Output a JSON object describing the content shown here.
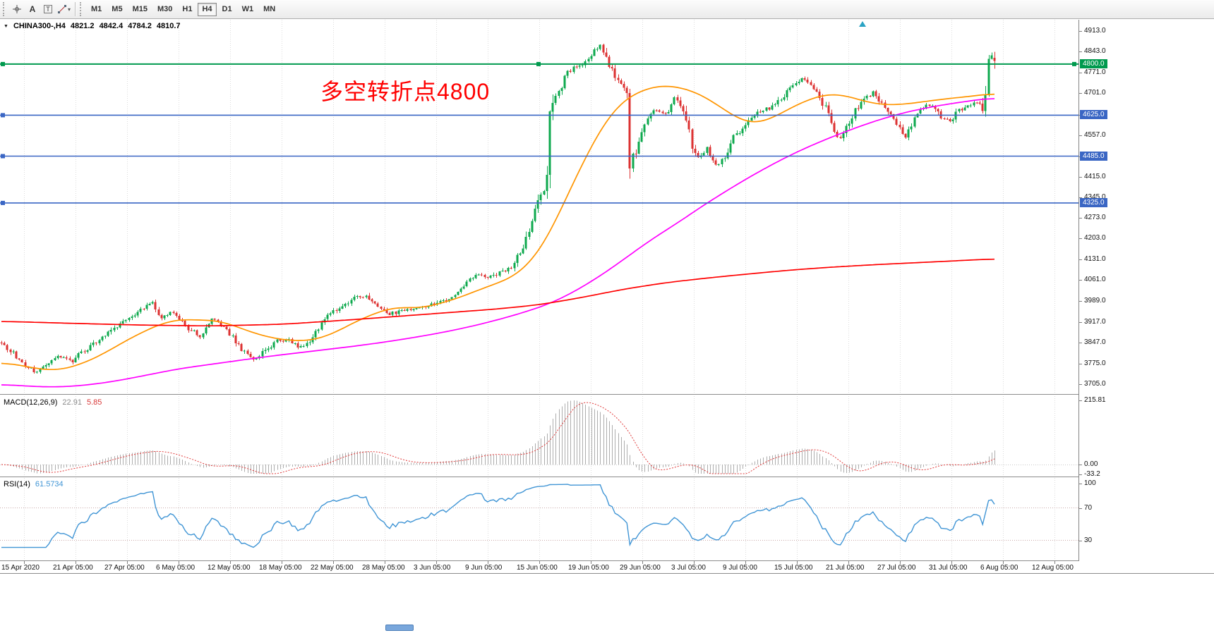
{
  "toolbar": {
    "tools": [
      {
        "name": "crosshair"
      },
      {
        "name": "text-label",
        "label": "A"
      },
      {
        "name": "text-box",
        "label": "T"
      },
      {
        "name": "shapes"
      }
    ],
    "timeframes": [
      "M1",
      "M5",
      "M15",
      "M30",
      "H1",
      "H4",
      "D1",
      "W1",
      "MN"
    ],
    "active_timeframe": "H4"
  },
  "chart": {
    "title": "CHINA300-,H4",
    "ohlc": {
      "open": "4821.2",
      "high": "4842.4",
      "low": "4784.2",
      "close": "4810.7"
    },
    "annotation": {
      "text": "多空转折点4800",
      "color": "#FF0000"
    },
    "price_ticks": [
      "4913.0",
      "4843.0",
      "4771.0",
      "4701.0",
      "4625.0",
      "4557.0",
      "4485.0",
      "4415.0",
      "4345.0",
      "4273.0",
      "4203.0",
      "4131.0",
      "4061.0",
      "3989.0",
      "3917.0",
      "3847.0",
      "3775.0",
      "3705.0"
    ],
    "time_ticks": [
      "15 Apr 2020",
      "21 Apr 05:00",
      "27 Apr 05:00",
      "6 May 05:00",
      "12 May 05:00",
      "18 May 05:00",
      "22 May 05:00",
      "28 May 05:00",
      "3 Jun 05:00",
      "9 Jun 05:00",
      "15 Jun 05:00",
      "19 Jun 05:00",
      "29 Jun 05:00",
      "3 Jul 05:00",
      "9 Jul 05:00",
      "15 Jul 05:00",
      "21 Jul 05:00",
      "27 Jul 05:00",
      "31 Jul 05:00",
      "6 Aug 05:00",
      "12 Aug 05:00"
    ],
    "levels": [
      {
        "price": 4800.0,
        "label": "4800.0",
        "color": "#009A4E"
      },
      {
        "price": 4625.0,
        "label": "4625.0",
        "color": "#3A66C4"
      },
      {
        "price": 4485.0,
        "label": "4485.0",
        "color": "#3A66C4"
      },
      {
        "price": 4325.0,
        "label": "4325.0",
        "color": "#3A66C4"
      }
    ]
  },
  "macd": {
    "label": "MACD(12,26,9)",
    "main_value": "22.91",
    "signal_value": "5.85",
    "ticks": [
      "215.81",
      "0.00",
      "-33.2"
    ]
  },
  "rsi": {
    "label": "RSI(14)",
    "value": "61.5734",
    "ticks": [
      "100",
      "70",
      "30"
    ],
    "levels": [
      70,
      30
    ]
  },
  "chart_data": {
    "type": "candlestick",
    "symbol": "CHINA300-",
    "timeframe": "H4",
    "bars": 336,
    "visible_price_range": [
      3674,
      4944
    ],
    "current_bar_ohlc": [
      4821.2,
      4842.4,
      4784.2,
      4810.7
    ],
    "horizontal_levels": [
      4800,
      4625,
      4485,
      4325
    ],
    "up_color": "#0EA94E",
    "down_color": "#DC3232",
    "close_anchors": [
      [
        0,
        3845
      ],
      [
        3,
        3818
      ],
      [
        6,
        3792
      ],
      [
        9,
        3762
      ],
      [
        12,
        3742
      ],
      [
        15,
        3772
      ],
      [
        18,
        3795
      ],
      [
        21,
        3802
      ],
      [
        24,
        3785
      ],
      [
        27,
        3812
      ],
      [
        31,
        3842
      ],
      [
        35,
        3868
      ],
      [
        39,
        3905
      ],
      [
        44,
        3938
      ],
      [
        48,
        3968
      ],
      [
        51,
        3982
      ],
      [
        54,
        3932
      ],
      [
        57,
        3952
      ],
      [
        60,
        3928
      ],
      [
        63,
        3895
      ],
      [
        67,
        3872
      ],
      [
        71,
        3928
      ],
      [
        74,
        3908
      ],
      [
        78,
        3865
      ],
      [
        82,
        3812
      ],
      [
        86,
        3788
      ],
      [
        89,
        3822
      ],
      [
        93,
        3852
      ],
      [
        97,
        3856
      ],
      [
        100,
        3832
      ],
      [
        103,
        3842
      ],
      [
        106,
        3885
      ],
      [
        109,
        3935
      ],
      [
        113,
        3958
      ],
      [
        117,
        3988
      ],
      [
        120,
        4008
      ],
      [
        123,
        4002
      ],
      [
        127,
        3968
      ],
      [
        130,
        3945
      ],
      [
        134,
        3952
      ],
      [
        138,
        3962
      ],
      [
        142,
        3968
      ],
      [
        146,
        3978
      ],
      [
        150,
        3992
      ],
      [
        154,
        4022
      ],
      [
        158,
        4062
      ],
      [
        161,
        4082
      ],
      [
        164,
        4068
      ],
      [
        167,
        4082
      ],
      [
        170,
        4092
      ],
      [
        173,
        4118
      ],
      [
        176,
        4175
      ],
      [
        179,
        4262
      ],
      [
        181,
        4330
      ],
      [
        183,
        4385
      ],
      [
        184,
        4408
      ],
      [
        185,
        4655
      ],
      [
        187,
        4682
      ],
      [
        188,
        4708
      ],
      [
        191,
        4775
      ],
      [
        194,
        4790
      ],
      [
        197,
        4802
      ],
      [
        200,
        4848
      ],
      [
        202,
        4862
      ],
      [
        205,
        4798
      ],
      [
        208,
        4742
      ],
      [
        210,
        4700
      ],
      [
        211,
        4690
      ],
      [
        212,
        4468
      ],
      [
        214,
        4505
      ],
      [
        217,
        4602
      ],
      [
        220,
        4642
      ],
      [
        224,
        4628
      ],
      [
        227,
        4682
      ],
      [
        230,
        4652
      ],
      [
        233,
        4522
      ],
      [
        235,
        4478
      ],
      [
        238,
        4512
      ],
      [
        241,
        4452
      ],
      [
        244,
        4485
      ],
      [
        247,
        4552
      ],
      [
        251,
        4592
      ],
      [
        255,
        4638
      ],
      [
        259,
        4648
      ],
      [
        263,
        4682
      ],
      [
        266,
        4722
      ],
      [
        270,
        4748
      ],
      [
        273,
        4732
      ],
      [
        276,
        4692
      ],
      [
        279,
        4622
      ],
      [
        281,
        4562
      ],
      [
        283,
        4548
      ],
      [
        285,
        4582
      ],
      [
        288,
        4642
      ],
      [
        291,
        4682
      ],
      [
        294,
        4702
      ],
      [
        297,
        4662
      ],
      [
        300,
        4622
      ],
      [
        303,
        4578
      ],
      [
        305,
        4552
      ],
      [
        308,
        4612
      ],
      [
        311,
        4652
      ],
      [
        314,
        4662
      ],
      [
        317,
        4618
      ],
      [
        320,
        4602
      ],
      [
        323,
        4642
      ],
      [
        326,
        4658
      ],
      [
        329,
        4668
      ],
      [
        331,
        4652
      ],
      [
        332,
        4692
      ],
      [
        333,
        4826
      ],
      [
        334,
        4840
      ],
      [
        335,
        4810.7
      ]
    ],
    "moving_averages": [
      {
        "name": "fast",
        "color": "#FF9500",
        "anchors": [
          [
            0,
            3782
          ],
          [
            10,
            3762
          ],
          [
            17,
            3750
          ],
          [
            24,
            3762
          ],
          [
            33,
            3800
          ],
          [
            43,
            3860
          ],
          [
            52,
            3905
          ],
          [
            57,
            3922
          ],
          [
            62,
            3930
          ],
          [
            67,
            3920
          ],
          [
            71,
            3928
          ],
          [
            76,
            3915
          ],
          [
            81,
            3895
          ],
          [
            88,
            3870
          ],
          [
            95,
            3856
          ],
          [
            102,
            3852
          ],
          [
            107,
            3858
          ],
          [
            114,
            3888
          ],
          [
            121,
            3928
          ],
          [
            129,
            3958
          ],
          [
            133,
            3972
          ],
          [
            140,
            3962
          ],
          [
            148,
            3980
          ],
          [
            157,
            4010
          ],
          [
            164,
            4040
          ],
          [
            171,
            4062
          ],
          [
            176,
            4095
          ],
          [
            181,
            4150
          ],
          [
            186,
            4240
          ],
          [
            190,
            4330
          ],
          [
            195,
            4440
          ],
          [
            200,
            4540
          ],
          [
            205,
            4625
          ],
          [
            210,
            4680
          ],
          [
            217,
            4715
          ],
          [
            222,
            4728
          ],
          [
            227,
            4725
          ],
          [
            233,
            4710
          ],
          [
            238,
            4685
          ],
          [
            243,
            4650
          ],
          [
            248,
            4615
          ],
          [
            252,
            4595
          ],
          [
            257,
            4600
          ],
          [
            262,
            4625
          ],
          [
            267,
            4655
          ],
          [
            272,
            4678
          ],
          [
            277,
            4695
          ],
          [
            281,
            4700
          ],
          [
            286,
            4690
          ],
          [
            291,
            4672
          ],
          [
            295,
            4662
          ],
          [
            300,
            4660
          ],
          [
            305,
            4662
          ],
          [
            310,
            4670
          ],
          [
            316,
            4678
          ],
          [
            322,
            4685
          ],
          [
            328,
            4690
          ],
          [
            335,
            4702
          ]
        ]
      },
      {
        "name": "medium",
        "color": "#FF00FF",
        "anchors": [
          [
            0,
            3705
          ],
          [
            10,
            3697
          ],
          [
            20,
            3695
          ],
          [
            30,
            3703
          ],
          [
            40,
            3718
          ],
          [
            50,
            3738
          ],
          [
            60,
            3758
          ],
          [
            70,
            3772
          ],
          [
            80,
            3786
          ],
          [
            90,
            3800
          ],
          [
            100,
            3812
          ],
          [
            110,
            3824
          ],
          [
            120,
            3836
          ],
          [
            130,
            3850
          ],
          [
            140,
            3866
          ],
          [
            150,
            3884
          ],
          [
            160,
            3906
          ],
          [
            170,
            3932
          ],
          [
            178,
            3956
          ],
          [
            186,
            3984
          ],
          [
            193,
            4020
          ],
          [
            200,
            4062
          ],
          [
            207,
            4110
          ],
          [
            214,
            4162
          ],
          [
            221,
            4212
          ],
          [
            229,
            4262
          ],
          [
            236,
            4312
          ],
          [
            243,
            4356
          ],
          [
            250,
            4400
          ],
          [
            257,
            4440
          ],
          [
            264,
            4478
          ],
          [
            271,
            4512
          ],
          [
            278,
            4542
          ],
          [
            285,
            4570
          ],
          [
            292,
            4596
          ],
          [
            300,
            4622
          ],
          [
            308,
            4642
          ],
          [
            316,
            4658
          ],
          [
            324,
            4670
          ],
          [
            335,
            4686
          ]
        ]
      },
      {
        "name": "slow",
        "color": "#FF0000",
        "anchors": [
          [
            0,
            3920
          ],
          [
            24,
            3913
          ],
          [
            48,
            3907
          ],
          [
            71,
            3904
          ],
          [
            95,
            3910
          ],
          [
            119,
            3926
          ],
          [
            143,
            3944
          ],
          [
            167,
            3962
          ],
          [
            181,
            3976
          ],
          [
            195,
            4000
          ],
          [
            210,
            4030
          ],
          [
            224,
            4052
          ],
          [
            238,
            4068
          ],
          [
            252,
            4082
          ],
          [
            267,
            4096
          ],
          [
            281,
            4106
          ],
          [
            295,
            4114
          ],
          [
            310,
            4121
          ],
          [
            322,
            4127
          ],
          [
            335,
            4134
          ]
        ]
      }
    ],
    "indicators": {
      "macd": {
        "params": [
          12,
          26,
          9
        ],
        "current_main": 22.91,
        "current_signal": 5.85,
        "max": 215.81,
        "min": -33.2,
        "histogram_color": "#ADADAD",
        "signal_color": "#E03A3A"
      },
      "rsi": {
        "period": 14,
        "current": 61.5734,
        "july_peak": 88,
        "line_color": "#4095D5",
        "levels": [
          70,
          30
        ]
      }
    }
  }
}
